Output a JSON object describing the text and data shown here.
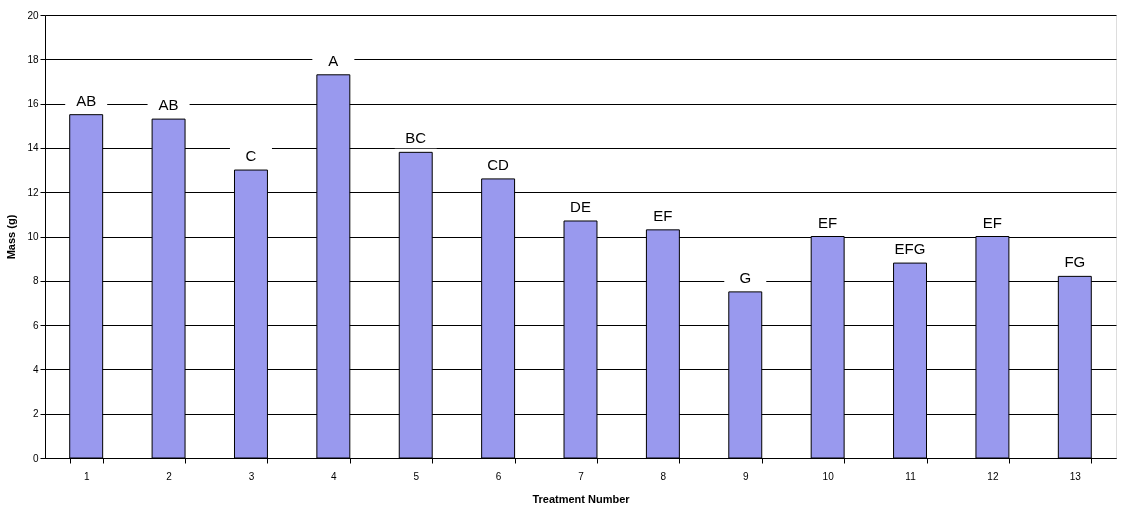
{
  "chart_data": {
    "type": "bar",
    "xlabel": "Treatment Number",
    "ylabel": "Mass (g)",
    "categories": [
      "1",
      "2",
      "3",
      "4",
      "5",
      "6",
      "7",
      "8",
      "9",
      "10",
      "11",
      "12",
      "13"
    ],
    "values": [
      15.5,
      15.3,
      13.0,
      17.3,
      13.8,
      12.6,
      10.7,
      10.3,
      7.5,
      10.0,
      8.8,
      10.0,
      8.2
    ],
    "color": "#9999ee",
    "ylim": [
      0,
      20
    ],
    "yticks": [
      0,
      2,
      4,
      6,
      8,
      10,
      12,
      14,
      16,
      18,
      20
    ],
    "grid": "y",
    "annotations": [
      {
        "text": "AB",
        "x": "1",
        "y": 15.5
      },
      {
        "text": "AB",
        "x": "2",
        "y": 15.3
      },
      {
        "text": "C",
        "x": "3",
        "y": 13.0
      },
      {
        "text": "A",
        "x": "4",
        "y": 17.3
      },
      {
        "text": "BC",
        "x": "5",
        "y": 13.8
      },
      {
        "text": "CD",
        "x": "6",
        "y": 12.6
      },
      {
        "text": "DE",
        "x": "7",
        "y": 10.7
      },
      {
        "text": "EF",
        "x": "8",
        "y": 10.3
      },
      {
        "text": "G",
        "x": "9",
        "y": 7.5
      },
      {
        "text": "EF",
        "x": "10",
        "y": 10.0
      },
      {
        "text": "EFG",
        "x": "11",
        "y": 8.8
      },
      {
        "text": "EF",
        "x": "12",
        "y": 10.0
      },
      {
        "text": "FG",
        "x": "13",
        "y": 8.2
      }
    ]
  }
}
